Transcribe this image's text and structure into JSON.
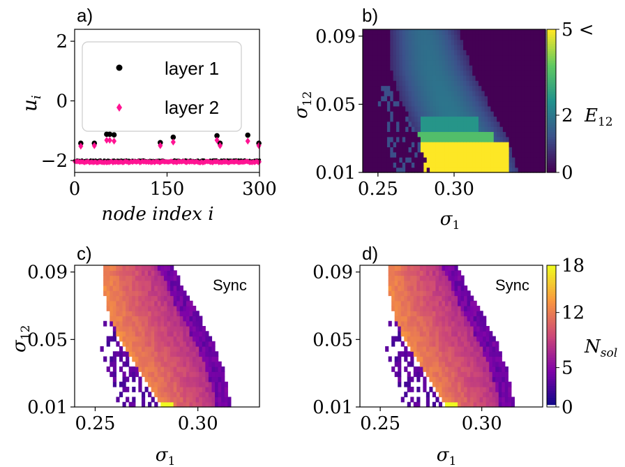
{
  "panels": {
    "a": {
      "label": "a)"
    },
    "b": {
      "label": "b)"
    },
    "c": {
      "label": "c)",
      "annotation": "Sync"
    },
    "d": {
      "label": "d)",
      "annotation": "Sync"
    }
  },
  "colors": {
    "layer1": "#000000",
    "layer2": "#ff1493",
    "empty": "#ffffff"
  },
  "chart_data": [
    {
      "panel": "a",
      "type": "scatter",
      "xlabel": "node index i",
      "ylabel": "u_i",
      "xlim": [
        0,
        300
      ],
      "ylim": [
        -2.4,
        2.4
      ],
      "xticks": [
        0,
        150,
        300
      ],
      "yticks": [
        2,
        0,
        -2
      ],
      "xtick_labels": [
        "0",
        "150",
        "300"
      ],
      "ytick_labels": [
        "2",
        "0",
        "−2"
      ],
      "legend": {
        "position": "top-right",
        "entries": [
          "layer 1",
          "layer 2"
        ]
      },
      "series": [
        {
          "name": "layer 1",
          "marker": "circle",
          "color": "#000000",
          "points": [
            [
              10,
              -1.42
            ],
            [
              32,
              -1.42
            ],
            [
              52,
              -1.12
            ],
            [
              57,
              -1.12
            ],
            [
              64,
              -1.14
            ],
            [
              139,
              -1.4
            ],
            [
              160,
              -1.22
            ],
            [
              231,
              -1.17
            ],
            [
              236,
              -1.42
            ],
            [
              281,
              -1.15
            ],
            [
              299,
              -1.42
            ]
          ],
          "baseline": {
            "x_range": [
              0,
              300
            ],
            "y": -2.0
          }
        },
        {
          "name": "layer 2",
          "marker": "diamond",
          "color": "#ff1493",
          "points": [
            [
              10,
              -1.52
            ],
            [
              32,
              -1.5
            ],
            [
              52,
              -1.32
            ],
            [
              57,
              -1.32
            ],
            [
              64,
              -1.35
            ],
            [
              139,
              -1.5
            ],
            [
              160,
              -1.38
            ],
            [
              231,
              -1.32
            ],
            [
              236,
              -1.5
            ],
            [
              281,
              -1.35
            ],
            [
              299,
              -1.5
            ]
          ],
          "baseline": {
            "x_range": [
              0,
              300
            ],
            "y": -2.05
          }
        }
      ]
    },
    {
      "panel": "b",
      "type": "heatmap",
      "xlabel": "σ1",
      "ylabel": "σ12",
      "xlim": [
        0.24,
        0.36
      ],
      "ylim": [
        0.01,
        0.094
      ],
      "xticks": [
        0.25,
        0.3
      ],
      "yticks": [
        0.01,
        0.05,
        0.09
      ],
      "xtick_labels": [
        "0.25",
        "0.30"
      ],
      "ytick_labels": [
        "0.01",
        "0.05",
        "0.09"
      ],
      "colorbar": {
        "label": "E12",
        "colormap": "viridis",
        "range": [
          0,
          5
        ],
        "ticks": [
          0,
          2,
          5
        ],
        "tick_labels": [
          "0",
          "2",
          "5 <"
        ]
      },
      "background_value": 0,
      "rows": 28,
      "cols": 60,
      "bands": [
        {
          "y_range": [
            0.01,
            0.094
          ],
          "value": 1.6,
          "edge": "region"
        },
        {
          "y_range": [
            0.01,
            0.027
          ],
          "x_range": [
            0.278,
            0.335
          ],
          "value": 5
        },
        {
          "y_range": [
            0.027,
            0.034
          ],
          "x_range": [
            0.275,
            0.325
          ],
          "value": 3.5
        },
        {
          "y_range": [
            0.034,
            0.042
          ],
          "x_range": [
            0.278,
            0.315
          ],
          "value": 2.6
        }
      ],
      "region": {
        "left_edge": [
          [
            0.01,
            0.285
          ],
          [
            0.03,
            0.277
          ],
          [
            0.05,
            0.266
          ],
          [
            0.07,
            0.259
          ],
          [
            0.094,
            0.257
          ]
        ],
        "right_edge": [
          [
            0.01,
            0.342
          ],
          [
            0.03,
            0.335
          ],
          [
            0.05,
            0.323
          ],
          [
            0.07,
            0.312
          ],
          [
            0.094,
            0.303
          ]
        ],
        "scatter_edge": [
          [
            0.01,
            0.262
          ],
          [
            0.03,
            0.255
          ],
          [
            0.05,
            0.25
          ]
        ]
      }
    },
    {
      "panel": "c",
      "type": "heatmap",
      "xlabel": "σ1",
      "ylabel": "σ12",
      "xlim": [
        0.24,
        0.33
      ],
      "ylim": [
        0.01,
        0.094
      ],
      "xticks": [
        0.25,
        0.3
      ],
      "yticks": [
        0.01,
        0.05,
        0.09
      ],
      "xtick_labels": [
        "0.25",
        "0.30"
      ],
      "ytick_labels": [
        "0.01",
        "0.05",
        "0.09"
      ],
      "colormap": "plasma",
      "range": [
        0,
        18
      ],
      "region": {
        "left_edge": [
          [
            0.01,
            0.282
          ],
          [
            0.03,
            0.272
          ],
          [
            0.05,
            0.262
          ],
          [
            0.07,
            0.255
          ],
          [
            0.094,
            0.254
          ]
        ],
        "right_edge": [
          [
            0.01,
            0.316
          ],
          [
            0.03,
            0.313
          ],
          [
            0.05,
            0.307
          ],
          [
            0.07,
            0.298
          ],
          [
            0.094,
            0.287
          ]
        ],
        "scatter_edge": [
          [
            0.01,
            0.26
          ],
          [
            0.03,
            0.256
          ],
          [
            0.05,
            0.252
          ]
        ]
      },
      "peak": {
        "sigma1": 0.285,
        "sigma12": 0.01,
        "value": 18
      },
      "typical_value": 10
    },
    {
      "panel": "d",
      "type": "heatmap",
      "xlabel": "σ1",
      "ylabel": "",
      "xlim": [
        0.24,
        0.33
      ],
      "ylim": [
        0.01,
        0.094
      ],
      "xticks": [
        0.25,
        0.3
      ],
      "yticks": [
        0.01,
        0.05,
        0.09
      ],
      "xtick_labels": [
        "0.25",
        "0.30"
      ],
      "ytick_labels": [
        "0.01",
        "0.05",
        "0.09"
      ],
      "colorbar": {
        "label": "N_sol",
        "colormap": "plasma",
        "range": [
          0,
          18
        ],
        "ticks": [
          0,
          5,
          12,
          18
        ],
        "tick_labels": [
          "0",
          "5",
          "12",
          "18"
        ]
      },
      "region": {
        "left_edge": [
          [
            0.01,
            0.282
          ],
          [
            0.03,
            0.272
          ],
          [
            0.05,
            0.262
          ],
          [
            0.07,
            0.255
          ],
          [
            0.094,
            0.254
          ]
        ],
        "right_edge": [
          [
            0.01,
            0.316
          ],
          [
            0.03,
            0.313
          ],
          [
            0.05,
            0.307
          ],
          [
            0.07,
            0.298
          ],
          [
            0.094,
            0.287
          ]
        ],
        "scatter_edge": [
          [
            0.01,
            0.26
          ],
          [
            0.03,
            0.256
          ],
          [
            0.05,
            0.252
          ]
        ]
      },
      "peak": {
        "sigma1": 0.285,
        "sigma12": 0.01,
        "value": 18
      },
      "typical_value": 10
    }
  ]
}
